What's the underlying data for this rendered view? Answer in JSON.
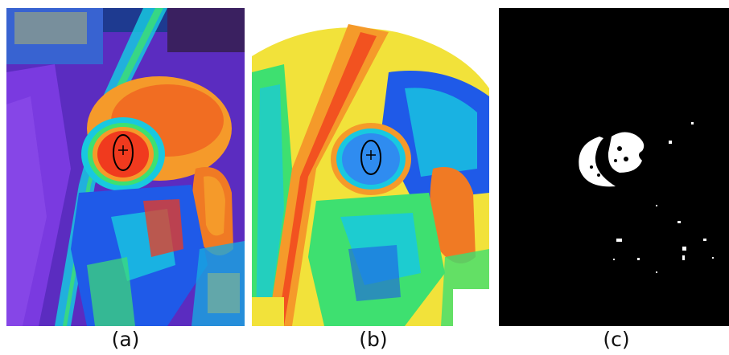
{
  "panels": [
    {
      "id": "a",
      "caption": "(a)"
    },
    {
      "id": "b",
      "caption": "(b)"
    },
    {
      "id": "c",
      "caption": "(c)"
    }
  ],
  "colors": {
    "purple": "#6a2fd0",
    "violet": "#8a3ad8",
    "blue": "#1f5ae8",
    "cyan": "#18c8e0",
    "green": "#3ee070",
    "yellow": "#f2e23a",
    "orange": "#f59a2a",
    "red": "#f03a1e",
    "black": "#000000",
    "white": "#ffffff"
  }
}
